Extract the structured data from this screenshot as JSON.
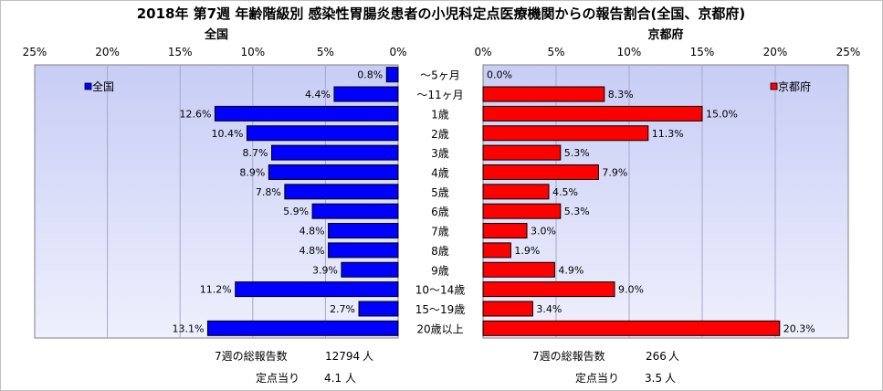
{
  "title": "2018年 第7週 年齢階級別 感染性胃腸炎患者の小児科定点医療機関からの報告割合(全国、京都府)",
  "chart_data": {
    "type": "bar",
    "categories": [
      "～5ヶ月",
      "～11ヶ月",
      "1歳",
      "2歳",
      "3歳",
      "4歳",
      "5歳",
      "6歳",
      "7歳",
      "8歳",
      "9歳",
      "10～14歳",
      "15～19歳",
      "20歳以上"
    ],
    "axis_ticks": [
      "0%",
      "5%",
      "10%",
      "15%",
      "20%",
      "25%"
    ],
    "xlim": [
      0,
      25
    ],
    "grid": true,
    "panels": [
      {
        "name": "全国",
        "legend": "全国",
        "legend_position": "top-left",
        "direction": "reversed",
        "color": "#0000ff",
        "values": [
          0.8,
          4.4,
          12.6,
          10.4,
          8.7,
          8.9,
          7.8,
          5.9,
          4.8,
          4.8,
          3.9,
          11.2,
          2.7,
          13.1
        ],
        "labels": [
          "0.8%",
          "4.4%",
          "12.6%",
          "10.4%",
          "8.7%",
          "8.9%",
          "7.8%",
          "5.9%",
          "4.8%",
          "4.8%",
          "3.9%",
          "11.2%",
          "2.7%",
          "13.1%"
        ]
      },
      {
        "name": "京都府",
        "legend": "京都府",
        "legend_position": "top-right",
        "direction": "normal",
        "color": "#ff0000",
        "values": [
          0.0,
          8.3,
          15.0,
          11.3,
          5.3,
          7.9,
          4.5,
          5.3,
          3.0,
          1.9,
          4.9,
          9.0,
          3.4,
          20.3
        ],
        "labels": [
          "0.0%",
          "8.3%",
          "15.0%",
          "11.3%",
          "5.3%",
          "7.9%",
          "4.5%",
          "5.3%",
          "3.0%",
          "1.9%",
          "4.9%",
          "9.0%",
          "3.4%",
          "20.3%"
        ]
      }
    ]
  },
  "footer": {
    "left": {
      "total_label": "7週の総報告数",
      "total_value": "12794",
      "total_unit": "人",
      "per_label": "定点当り",
      "per_value": "4.1",
      "per_unit": "人"
    },
    "right": {
      "total_label": "7週の総報告数",
      "total_value": "266",
      "total_unit": "人",
      "per_label": "定点当り",
      "per_value": "3.5",
      "per_unit": "人"
    }
  }
}
